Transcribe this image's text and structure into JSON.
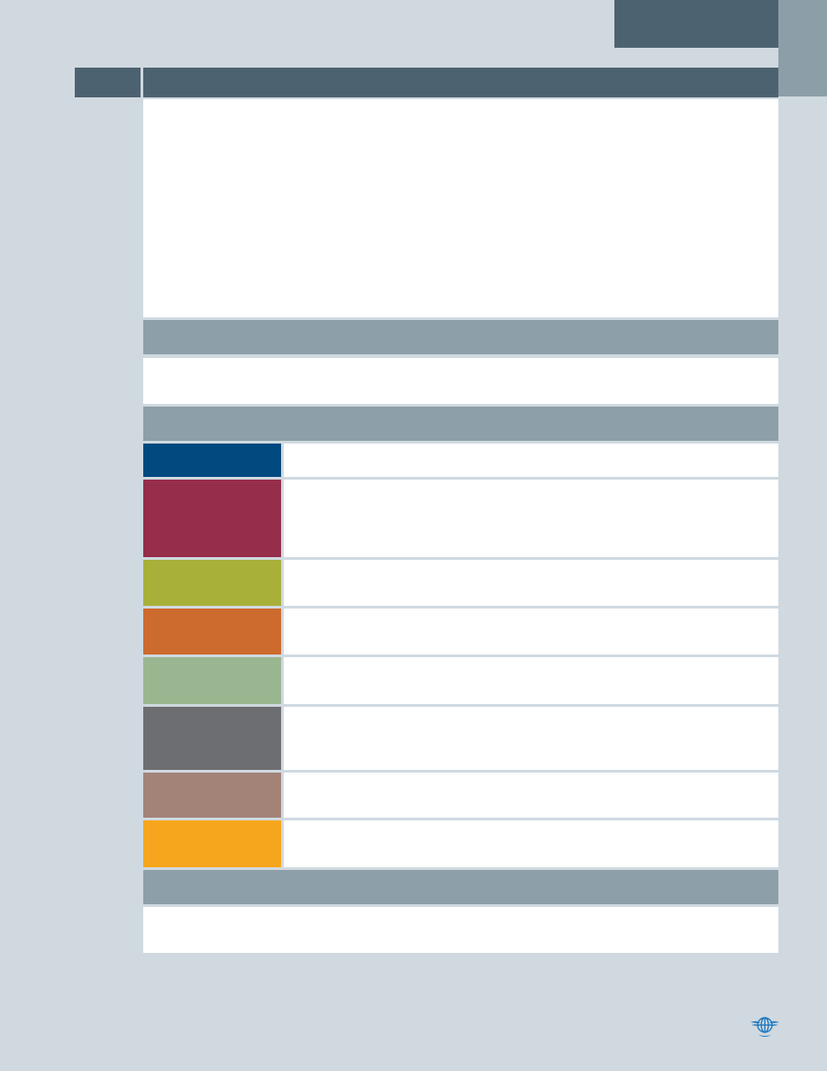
{
  "palette": {
    "header_dark": "#4d6270",
    "header_grey": "#8d9fa9",
    "side_strip": "#8c9fa8",
    "page_background": "#d0d9e0"
  },
  "color_swatches": [
    {
      "name": "dark-blue",
      "color": "#004a80"
    },
    {
      "name": "burgundy",
      "color": "#962d4b"
    },
    {
      "name": "olive-green",
      "color": "#a8b03a"
    },
    {
      "name": "burnt-orange",
      "color": "#cd6a2e"
    },
    {
      "name": "sage-green",
      "color": "#9ab690"
    },
    {
      "name": "dark-grey",
      "color": "#6d6e71"
    },
    {
      "name": "taupe",
      "color": "#a38378"
    },
    {
      "name": "amber",
      "color": "#f6a61c"
    }
  ],
  "logo": {
    "icon": "icao-emblem-icon",
    "color": "#1f78c0"
  }
}
